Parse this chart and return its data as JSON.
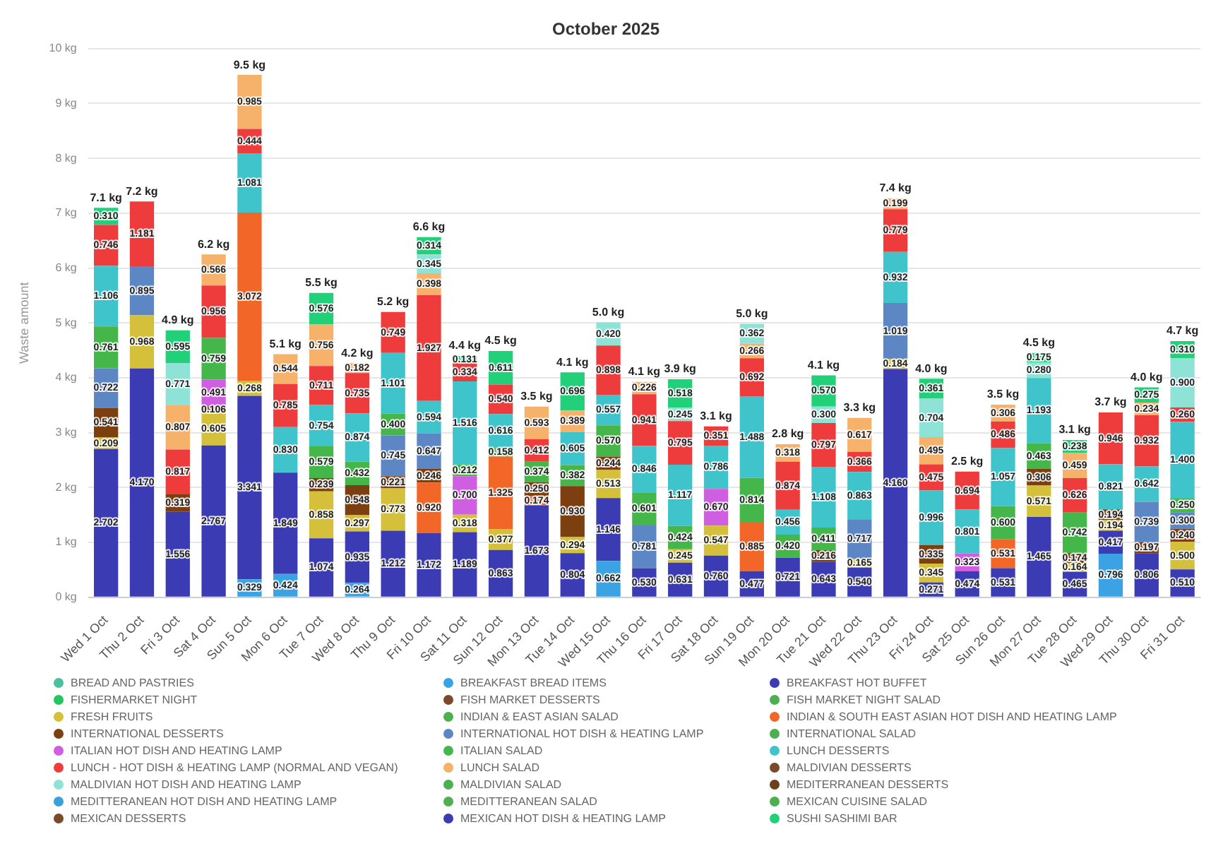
{
  "chart_data": {
    "type": "bar",
    "stacked": true,
    "title": "October 2025",
    "ylabel": "Waste amount",
    "categories": [
      "Wed 1 Oct",
      "Thu 2 Oct",
      "Fri 3 Oct",
      "Sat 4 Oct",
      "Sun 5 Oct",
      "Mon 6 Oct",
      "Tue 7 Oct",
      "Wed 8 Oct",
      "Thu 9 Oct",
      "Fri 10 Oct",
      "Sat 11 Oct",
      "Sun 12 Oct",
      "Mon 13 Oct",
      "Tue 14 Oct",
      "Wed 15 Oct",
      "Thu 16 Oct",
      "Fri 17 Oct",
      "Sat 18 Oct",
      "Sun 19 Oct",
      "Mon 20 Oct",
      "Tue 21 Oct",
      "Wed 22 Oct",
      "Thu 23 Oct",
      "Fri 24 Oct",
      "Sat 25 Oct",
      "Sun 26 Oct",
      "Mon 27 Oct",
      "Tue 28 Oct",
      "Wed 29 Oct",
      "Thu 30 Oct",
      "Fri 31 Oct"
    ],
    "ylim": [
      0,
      10
    ],
    "yticks": [
      {
        "value": 0,
        "label": "0 kg"
      },
      {
        "value": 1,
        "label": "1 kg"
      },
      {
        "value": 2,
        "label": "2 kg"
      },
      {
        "value": 3,
        "label": "3 kg"
      },
      {
        "value": 4,
        "label": "4 kg"
      },
      {
        "value": 5,
        "label": "5 kg"
      },
      {
        "value": 6,
        "label": "6 kg"
      },
      {
        "value": 7,
        "label": "7 kg"
      },
      {
        "value": 8,
        "label": "8 kg"
      },
      {
        "value": 9,
        "label": "9 kg"
      },
      {
        "value": 10,
        "label": "10 kg"
      }
    ],
    "grid": "y",
    "legend": "bottom",
    "totals": [
      "7.1 kg",
      "7.2 kg",
      "4.9 kg",
      "6.2 kg",
      "9.5 kg",
      "5.1 kg",
      "5.5 kg",
      "4.2 kg",
      "5.2 kg",
      "6.6 kg",
      "4.4 kg",
      "4.5 kg",
      "3.5 kg",
      "4.1 kg",
      "5.0 kg",
      "4.1 kg",
      "3.9 kg",
      "3.1 kg",
      "5.0 kg",
      "2.8 kg",
      "4.1 kg",
      "3.3 kg",
      "7.4 kg",
      "4.0 kg",
      "2.5 kg",
      "3.5 kg",
      "4.5 kg",
      "3.1 kg",
      "3.7 kg",
      "4.0 kg",
      "4.7 kg"
    ],
    "series": [
      {
        "name": "BREAD AND PASTRIES",
        "color": "#4cbfa0",
        "values": [
          null,
          null,
          null,
          null,
          null,
          null,
          null,
          null,
          null,
          null,
          null,
          null,
          null,
          null,
          null,
          null,
          null,
          null,
          null,
          null,
          null,
          null,
          null,
          null,
          null,
          null,
          null,
          null,
          null,
          null,
          null
        ]
      },
      {
        "name": "BREAKFAST BREAD ITEMS",
        "color": "#3ba3e3",
        "values": [
          null,
          null,
          null,
          null,
          0.329,
          0.424,
          null,
          0.264,
          null,
          null,
          null,
          null,
          null,
          null,
          0.662,
          null,
          null,
          null,
          null,
          null,
          null,
          null,
          null,
          null,
          null,
          null,
          null,
          null,
          0.796,
          null,
          null
        ],
        "value_labels": [
          null,
          null,
          null,
          null,
          "0.329",
          "0.424",
          null,
          "0.264",
          null,
          null,
          null,
          null,
          null,
          null,
          "0.662",
          null,
          null,
          null,
          null,
          null,
          null,
          null,
          null,
          null,
          null,
          null,
          null,
          null,
          "0.796",
          null,
          null
        ]
      },
      {
        "name": "BREAKFAST HOT BUFFET",
        "color": "#3b3bb3",
        "values": [
          2.702,
          4.17,
          1.556,
          2.767,
          3.341,
          1.849,
          1.074,
          0.935,
          1.212,
          1.172,
          1.189,
          0.863,
          1.673,
          0.804,
          1.146,
          0.53,
          0.631,
          0.76,
          0.477,
          0.721,
          0.643,
          0.54,
          4.16,
          0.271,
          0.474,
          0.531,
          1.465,
          0.465,
          0.417,
          0.806,
          0.51
        ],
        "value_labels": [
          "2.702",
          "4.170",
          "1.556",
          "2.767",
          "3.341",
          "1.849",
          "1.074",
          "0.935",
          "1.212",
          "1.172",
          "1.189",
          "0.863",
          "1.673",
          "0.804",
          "1.146",
          "0.530",
          "0.631",
          "0.760",
          "0.477",
          "0.721",
          "0.643",
          "0.540",
          "4.160",
          "0.271",
          "0.474",
          "0.531",
          "1.465",
          "0.465",
          "0.417",
          "0.806",
          "0.510"
        ]
      },
      {
        "name": "FISHERMARKET NIGHT",
        "color": "#22c55e",
        "values": [
          null,
          null,
          null,
          null,
          null,
          null,
          null,
          null,
          null,
          null,
          null,
          null,
          null,
          null,
          null,
          null,
          null,
          null,
          null,
          null,
          null,
          null,
          null,
          null,
          null,
          null,
          null,
          null,
          null,
          null,
          null
        ]
      },
      {
        "name": "FISH MARKET DESSERTS",
        "color": "#7a4a2a",
        "values": [
          null,
          null,
          null,
          null,
          null,
          null,
          null,
          null,
          null,
          null,
          null,
          null,
          null,
          null,
          null,
          null,
          null,
          null,
          null,
          null,
          null,
          null,
          null,
          null,
          null,
          null,
          null,
          null,
          null,
          null,
          null
        ]
      },
      {
        "name": "FISH MARKET NIGHT SALAD",
        "color": "#4caf50",
        "values": [
          null,
          null,
          null,
          null,
          null,
          null,
          null,
          null,
          null,
          null,
          null,
          null,
          null,
          null,
          null,
          null,
          null,
          null,
          null,
          null,
          null,
          null,
          null,
          null,
          null,
          null,
          null,
          null,
          null,
          null,
          null
        ]
      },
      {
        "name": "FRESH FRUITS",
        "color": "#d4c03a",
        "values": [
          0.209,
          0.968,
          null,
          0.605,
          0.268,
          null,
          0.858,
          0.297,
          0.773,
          null,
          0.318,
          0.377,
          null,
          0.294,
          0.513,
          null,
          0.245,
          0.547,
          null,
          null,
          null,
          0.165,
          0.184,
          0.345,
          null,
          null,
          0.571,
          0.164,
          0.194,
          null,
          0.5
        ],
        "value_labels": [
          "0.209",
          "0.968",
          null,
          "0.605",
          "0.268",
          null,
          "0.858",
          "0.297",
          "0.773",
          null,
          "0.318",
          "0.377",
          null,
          "0.294",
          "0.513",
          null,
          "0.245",
          "0.547",
          null,
          null,
          null,
          "0.165",
          "0.184",
          "0.345",
          null,
          null,
          "0.571",
          "0.164",
          "0.194",
          null,
          "0.500"
        ]
      },
      {
        "name": "INDIAN & EAST ASIAN SALAD",
        "color": "#4caf50",
        "values": [
          null,
          null,
          null,
          null,
          null,
          null,
          null,
          null,
          null,
          null,
          null,
          null,
          null,
          null,
          null,
          null,
          null,
          null,
          null,
          null,
          null,
          null,
          null,
          null,
          null,
          null,
          null,
          null,
          null,
          null,
          null
        ]
      },
      {
        "name": "INDIAN & SOUTH EAST ASIAN HOT DISH AND HEATING LAMP",
        "color": "#f26628",
        "values": [
          null,
          null,
          null,
          null,
          3.072,
          null,
          null,
          null,
          null,
          0.92,
          null,
          1.325,
          0.174,
          null,
          null,
          null,
          null,
          null,
          0.885,
          null,
          null,
          null,
          null,
          null,
          null,
          0.531,
          null,
          null,
          null,
          null,
          null
        ],
        "value_labels": [
          null,
          null,
          null,
          null,
          "3.072",
          null,
          null,
          null,
          null,
          "0.920",
          null,
          "1.325",
          "0.174",
          null,
          null,
          null,
          null,
          null,
          "0.885",
          null,
          null,
          null,
          null,
          null,
          null,
          "0.531",
          null,
          null,
          null,
          null,
          null
        ]
      },
      {
        "name": "INTERNATIONAL DESSERTS",
        "color": "#7b3f10",
        "values": [
          0.541,
          null,
          0.319,
          0.106,
          null,
          null,
          0.239,
          0.548,
          0.221,
          0.246,
          null,
          null,
          0.25,
          0.93,
          0.244,
          null,
          null,
          null,
          null,
          null,
          0.216,
          null,
          null,
          0.335,
          null,
          null,
          0.306,
          0.174,
          0.194,
          0.197,
          0.24
        ],
        "value_labels": [
          "0.541",
          null,
          "0.319",
          "0.106",
          null,
          null,
          "0.239",
          "0.548",
          "0.221",
          "0.246",
          null,
          null,
          "0.250",
          "0.930",
          "0.244",
          null,
          null,
          null,
          null,
          null,
          "0.216",
          null,
          null,
          "0.335",
          null,
          null,
          "0.306",
          "0.174",
          "0.194",
          "0.197",
          "0.240"
        ]
      },
      {
        "name": "INTERNATIONAL HOT DISH & HEATING LAMP",
        "color": "#5d86c5",
        "values": [
          0.722,
          0.895,
          null,
          null,
          null,
          null,
          null,
          null,
          0.745,
          0.647,
          null,
          null,
          null,
          null,
          null,
          0.781,
          null,
          null,
          null,
          null,
          null,
          0.717,
          1.019,
          null,
          null,
          null,
          null,
          null,
          null,
          0.739,
          0.3
        ],
        "value_labels": [
          "0.722",
          "0.895",
          null,
          null,
          null,
          null,
          null,
          null,
          "0.745",
          "0.647",
          null,
          null,
          null,
          null,
          null,
          "0.781",
          null,
          null,
          null,
          null,
          null,
          "0.717",
          "1.019",
          null,
          null,
          null,
          null,
          null,
          null,
          "0.739",
          "0.300"
        ]
      },
      {
        "name": "INTERNATIONAL SALAD",
        "color": "#4caf50",
        "values": [
          null,
          null,
          null,
          null,
          null,
          null,
          null,
          null,
          null,
          null,
          null,
          null,
          null,
          null,
          null,
          null,
          null,
          null,
          null,
          null,
          null,
          null,
          null,
          null,
          null,
          null,
          null,
          null,
          null,
          null,
          null
        ]
      },
      {
        "name": "ITALIAN HOT DISH AND HEATING LAMP",
        "color": "#cf5fe0",
        "values": [
          null,
          null,
          null,
          0.491,
          null,
          null,
          null,
          null,
          null,
          null,
          0.7,
          null,
          null,
          null,
          null,
          null,
          null,
          0.67,
          null,
          null,
          null,
          null,
          null,
          null,
          0.323,
          null,
          null,
          null,
          null,
          null,
          null
        ],
        "value_labels": [
          null,
          null,
          null,
          "0.491",
          null,
          null,
          null,
          null,
          null,
          null,
          "0.700",
          null,
          null,
          null,
          null,
          null,
          null,
          "0.670",
          null,
          null,
          null,
          null,
          null,
          null,
          "0.323",
          null,
          null,
          null,
          null,
          null,
          null
        ]
      },
      {
        "name": "ITALIAN SALAD",
        "color": "#45b649",
        "values": [
          0.761,
          null,
          null,
          0.759,
          null,
          null,
          0.579,
          0.432,
          0.4,
          null,
          0.212,
          0.158,
          0.374,
          0.382,
          0.57,
          0.601,
          0.424,
          null,
          0.814,
          0.42,
          0.411,
          null,
          null,
          null,
          null,
          0.6,
          0.463,
          0.742,
          null,
          null,
          0.25
        ],
        "value_labels": [
          "0.761",
          null,
          null,
          "0.759",
          null,
          null,
          "0.579",
          "0.432",
          "0.400",
          null,
          "0.212",
          "0.158",
          "0.374",
          "0.382",
          "0.570",
          "0.601",
          "0.424",
          null,
          "0.814",
          "0.420",
          "0.411",
          null,
          null,
          null,
          null,
          "0.600",
          "0.463",
          "0.742",
          null,
          null,
          "0.250"
        ]
      },
      {
        "name": "LUNCH DESSERTS",
        "color": "#40c4cc",
        "values": [
          1.106,
          null,
          null,
          null,
          1.081,
          0.83,
          0.754,
          0.874,
          1.101,
          0.594,
          1.516,
          0.616,
          null,
          0.605,
          0.557,
          0.846,
          1.117,
          0.786,
          1.488,
          0.456,
          1.108,
          0.863,
          0.932,
          0.996,
          0.801,
          1.057,
          1.193,
          null,
          0.821,
          0.642,
          1.4
        ],
        "value_labels": [
          "1.106",
          null,
          null,
          null,
          "1.081",
          "0.830",
          "0.754",
          "0.874",
          "1.101",
          "0.594",
          "1.516",
          "0.616",
          null,
          "0.605",
          "0.557",
          "0.846",
          "1.117",
          "0.786",
          "1.488",
          "0.456",
          "1.108",
          "0.863",
          "0.932",
          "0.996",
          "0.801",
          "1.057",
          "1.193",
          null,
          "0.821",
          "0.642",
          "1.400"
        ]
      },
      {
        "name": "LUNCH - HOT DISH & HEATING LAMP (NORMAL AND VEGAN)",
        "color": "#ee3b3b",
        "values": [
          0.746,
          1.181,
          0.817,
          0.956,
          0.444,
          0.785,
          0.711,
          0.735,
          0.749,
          1.927,
          0.334,
          0.54,
          0.412,
          null,
          0.898,
          0.941,
          0.795,
          0.351,
          0.692,
          0.874,
          0.797,
          0.366,
          0.779,
          0.475,
          0.694,
          0.486,
          null,
          0.626,
          0.946,
          0.932,
          0.26
        ],
        "value_labels": [
          "0.746",
          "1.181",
          "0.817",
          "0.956",
          "0.444",
          "0.785",
          "0.711",
          "0.735",
          "0.749",
          "1.927",
          "0.334",
          "0.540",
          "0.412",
          null,
          "0.898",
          "0.941",
          "0.795",
          "0.351",
          "0.692",
          "0.874",
          "0.797",
          "0.366",
          "0.779",
          "0.475",
          "0.694",
          "0.486",
          null,
          "0.626",
          "0.946",
          "0.932",
          "0.260"
        ]
      },
      {
        "name": "LUNCH SALAD",
        "color": "#f6b26b",
        "values": [
          null,
          null,
          0.807,
          0.566,
          0.985,
          0.544,
          0.756,
          0.182,
          null,
          0.398,
          null,
          null,
          0.593,
          0.389,
          null,
          0.226,
          null,
          null,
          0.266,
          0.318,
          null,
          0.617,
          0.199,
          0.495,
          null,
          0.306,
          null,
          0.459,
          null,
          0.234,
          null
        ],
        "value_labels": [
          null,
          null,
          "0.807",
          "0.566",
          "0.985",
          "0.544",
          "0.756",
          "0.182",
          null,
          "0.398",
          null,
          null,
          "0.593",
          "0.389",
          null,
          "0.226",
          null,
          null,
          "0.266",
          "0.318",
          null,
          "0.617",
          "0.199",
          "0.495",
          null,
          "0.306",
          null,
          "0.459",
          null,
          "0.234",
          null
        ]
      },
      {
        "name": "MALDIVIAN DESSERTS",
        "color": "#7a4a2a",
        "values": [
          null,
          null,
          null,
          null,
          null,
          null,
          null,
          null,
          null,
          null,
          null,
          null,
          null,
          null,
          null,
          null,
          null,
          null,
          null,
          null,
          null,
          null,
          null,
          null,
          null,
          null,
          null,
          null,
          null,
          null,
          null
        ]
      },
      {
        "name": "MALDIVIAN HOT DISH AND HEATING LAMP",
        "color": "#8ee3d6",
        "values": [
          null,
          null,
          0.771,
          null,
          null,
          null,
          null,
          null,
          null,
          0.345,
          null,
          null,
          null,
          null,
          0.42,
          null,
          0.245,
          null,
          0.362,
          null,
          0.3,
          null,
          null,
          0.704,
          null,
          null,
          0.28,
          null,
          null,
          null,
          0.9
        ],
        "value_labels": [
          null,
          null,
          "0.771",
          null,
          null,
          null,
          null,
          null,
          null,
          "0.345",
          null,
          null,
          null,
          null,
          "0.420",
          null,
          "0.245",
          null,
          "0.362",
          null,
          "0.300",
          null,
          null,
          "0.704",
          null,
          null,
          "0.280",
          null,
          null,
          null,
          "0.900"
        ]
      },
      {
        "name": "MALDIVIAN SALAD",
        "color": "#4caf50",
        "values": [
          null,
          null,
          null,
          null,
          null,
          null,
          null,
          null,
          null,
          null,
          null,
          null,
          null,
          null,
          null,
          null,
          null,
          null,
          null,
          null,
          null,
          null,
          null,
          null,
          null,
          null,
          null,
          null,
          null,
          null,
          null
        ]
      },
      {
        "name": "MEDITERRANEAN DESSERTS",
        "color": "#6b3f1f",
        "values": [
          null,
          null,
          null,
          null,
          null,
          null,
          null,
          null,
          null,
          null,
          null,
          null,
          null,
          null,
          null,
          null,
          null,
          null,
          null,
          null,
          null,
          null,
          null,
          null,
          null,
          null,
          null,
          null,
          null,
          null,
          null
        ]
      },
      {
        "name": "MEDITTERANEAN HOT DISH AND HEATING LAMP",
        "color": "#3aa0dc",
        "values": [
          null,
          null,
          null,
          null,
          null,
          null,
          null,
          null,
          null,
          null,
          null,
          null,
          null,
          null,
          null,
          null,
          null,
          null,
          null,
          null,
          null,
          null,
          null,
          null,
          null,
          null,
          null,
          null,
          null,
          null,
          null
        ]
      },
      {
        "name": "MEDITTERANEAN SALAD",
        "color": "#4caf50",
        "values": [
          null,
          null,
          null,
          null,
          null,
          null,
          null,
          null,
          null,
          null,
          null,
          null,
          null,
          null,
          null,
          null,
          null,
          null,
          null,
          null,
          null,
          null,
          null,
          null,
          null,
          null,
          null,
          null,
          null,
          null,
          null
        ]
      },
      {
        "name": "MEXICAN CUISINE SALAD",
        "color": "#4caf50",
        "values": [
          null,
          null,
          null,
          null,
          null,
          null,
          null,
          null,
          null,
          null,
          null,
          null,
          null,
          null,
          null,
          null,
          null,
          null,
          null,
          null,
          null,
          null,
          null,
          null,
          null,
          null,
          null,
          null,
          null,
          null,
          null
        ]
      },
      {
        "name": "MEXICAN DESSERTS",
        "color": "#7a4a2a",
        "values": [
          null,
          null,
          null,
          null,
          null,
          null,
          null,
          null,
          null,
          null,
          null,
          null,
          null,
          null,
          null,
          null,
          null,
          null,
          null,
          null,
          null,
          null,
          null,
          null,
          null,
          null,
          null,
          null,
          null,
          null,
          null
        ]
      },
      {
        "name": "MEXICAN HOT DISH & HEATING LAMP",
        "color": "#3b3bb3",
        "values": [
          null,
          null,
          null,
          null,
          null,
          null,
          null,
          null,
          null,
          null,
          null,
          null,
          null,
          null,
          null,
          null,
          null,
          null,
          null,
          null,
          null,
          null,
          null,
          null,
          null,
          null,
          null,
          null,
          null,
          null,
          null
        ]
      },
      {
        "name": "SUSHI SASHIMI BAR",
        "color": "#22d07a",
        "values": [
          0.31,
          null,
          0.595,
          null,
          null,
          null,
          0.576,
          null,
          null,
          0.314,
          0.131,
          0.611,
          null,
          0.696,
          null,
          null,
          0.518,
          null,
          null,
          null,
          0.57,
          null,
          null,
          0.361,
          null,
          null,
          0.175,
          0.238,
          null,
          0.275,
          0.31
        ],
        "value_labels": [
          "0.310",
          null,
          "0.595",
          null,
          null,
          null,
          "0.576",
          null,
          null,
          "0.314",
          "0.131",
          "0.611",
          null,
          "0.696",
          null,
          null,
          "0.518",
          null,
          null,
          null,
          "0.570",
          null,
          null,
          "0.361",
          null,
          null,
          "0.175",
          "0.238",
          null,
          "0.275",
          "0.310"
        ]
      }
    ]
  }
}
